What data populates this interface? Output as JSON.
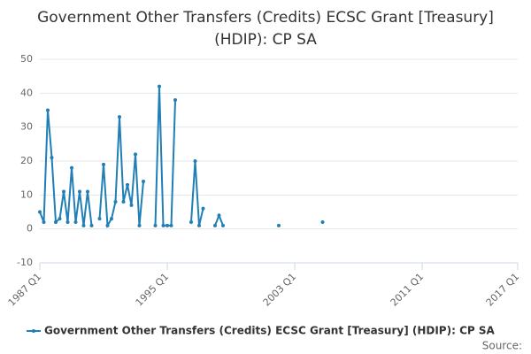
{
  "chart_data": {
    "type": "line",
    "title": "Government Other Transfers (Credits) ECSC Grant [Treasury] (HDIP): CP SA",
    "source": "Source:",
    "x": [
      "1987 Q1",
      "1987 Q2",
      "1987 Q3",
      "1987 Q4",
      "1988 Q1",
      "1988 Q2",
      "1988 Q3",
      "1988 Q4",
      "1989 Q1",
      "1989 Q2",
      "1989 Q3",
      "1989 Q4",
      "1990 Q1",
      "1990 Q2",
      "1990 Q3",
      "1990 Q4",
      "1991 Q1",
      "1991 Q2",
      "1991 Q3",
      "1991 Q4",
      "1992 Q1",
      "1992 Q2",
      "1992 Q3",
      "1992 Q4",
      "1993 Q1",
      "1993 Q2",
      "1993 Q3",
      "1993 Q4",
      "1994 Q1",
      "1994 Q2",
      "1994 Q3",
      "1994 Q4",
      "1995 Q1",
      "1995 Q2",
      "1995 Q3",
      "1995 Q4",
      "1996 Q1",
      "1996 Q2",
      "1996 Q3",
      "1996 Q4",
      "1997 Q1",
      "1997 Q2",
      "1997 Q3",
      "1997 Q4",
      "1998 Q1",
      "1998 Q2",
      "1998 Q3",
      "1998 Q4",
      "1999 Q1",
      "1999 Q2",
      "1999 Q3",
      "1999 Q4",
      "2000 Q1",
      "2000 Q2",
      "2000 Q3",
      "2000 Q4",
      "2001 Q1",
      "2001 Q2",
      "2001 Q3",
      "2001 Q4",
      "2002 Q1",
      "2002 Q2",
      "2002 Q3",
      "2002 Q4",
      "2003 Q1",
      "2003 Q2",
      "2003 Q3",
      "2003 Q4",
      "2004 Q1",
      "2004 Q2",
      "2004 Q3",
      "2004 Q4"
    ],
    "series": [
      {
        "name": "Government Other Transfers (Credits) ECSC Grant [Treasury] (HDIP): CP SA",
        "color": "#1f7fb6",
        "values": [
          5,
          2,
          35,
          21,
          2,
          3,
          11,
          2,
          18,
          2,
          11,
          1,
          11,
          1,
          null,
          3,
          19,
          1,
          3,
          8,
          33,
          8,
          13,
          7,
          22,
          1,
          14,
          null,
          null,
          1,
          42,
          1,
          1,
          1,
          38,
          null,
          null,
          null,
          2,
          20,
          1,
          6,
          null,
          null,
          1,
          4,
          1,
          null,
          null,
          null,
          null,
          null,
          null,
          null,
          null,
          null,
          null,
          null,
          null,
          null,
          1,
          null,
          null,
          null,
          null,
          null,
          null,
          null,
          null,
          null,
          null,
          2
        ]
      }
    ],
    "xlim": [
      "1987 Q1",
      "2017 Q1"
    ],
    "xticks": [
      "1987 Q1",
      "1995 Q1",
      "2003 Q1",
      "2011 Q1",
      "2017 Q1"
    ],
    "ylim": [
      -10,
      50
    ],
    "yticks": [
      -10,
      0,
      10,
      20,
      30,
      40,
      50
    ],
    "grid": true
  }
}
